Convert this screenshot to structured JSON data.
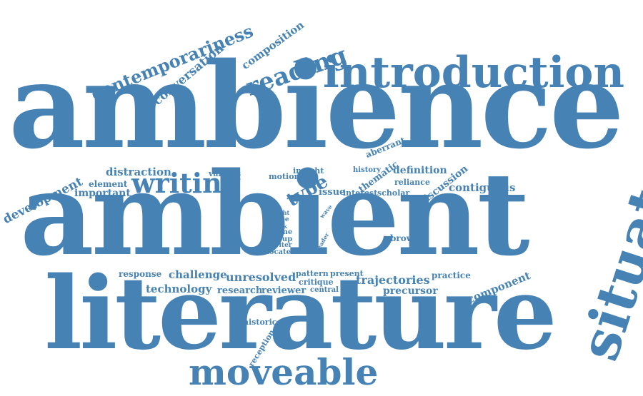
{
  "color": "#4682b4",
  "words": [
    {
      "id": "ambience",
      "text": "ambience"
    },
    {
      "id": "ambient",
      "text": "ambient"
    },
    {
      "id": "literature",
      "text": "literature"
    },
    {
      "id": "introduction",
      "text": "introduction"
    },
    {
      "id": "situated",
      "text": "situated"
    },
    {
      "id": "moveable",
      "text": "moveable"
    },
    {
      "id": "writing",
      "text": "writing"
    },
    {
      "id": "reading",
      "text": "reading"
    },
    {
      "id": "contemporariness",
      "text": "contemporariness"
    },
    {
      "id": "conversation",
      "text": "conversation"
    },
    {
      "id": "composition",
      "text": "composition"
    },
    {
      "id": "development",
      "text": "development"
    },
    {
      "id": "distraction",
      "text": "distraction"
    },
    {
      "id": "various",
      "text": "various"
    },
    {
      "id": "element",
      "text": "element"
    },
    {
      "id": "important",
      "text": "important"
    },
    {
      "id": "motion",
      "text": "motion"
    },
    {
      "id": "insight",
      "text": "insight"
    },
    {
      "id": "type",
      "text": "type"
    },
    {
      "id": "issue",
      "text": "issue"
    },
    {
      "id": "history",
      "text": "history"
    },
    {
      "id": "thematic",
      "text": "thematic"
    },
    {
      "id": "interest",
      "text": "interest"
    },
    {
      "id": "scholar",
      "text": "scholar"
    },
    {
      "id": "definition",
      "text": "definition"
    },
    {
      "id": "reliance",
      "text": "reliance"
    },
    {
      "id": "discussion",
      "text": "discussion"
    },
    {
      "id": "contiguous",
      "text": "contiguous"
    },
    {
      "id": "aberrant",
      "text": "aberrant"
    },
    {
      "id": "light",
      "text": "light"
    },
    {
      "id": "hope",
      "text": "hope"
    },
    {
      "id": "book",
      "text": "book"
    },
    {
      "id": "theme",
      "text": "theme"
    },
    {
      "id": "group",
      "text": "group"
    },
    {
      "id": "writer",
      "text": "writer"
    },
    {
      "id": "locate",
      "text": "locate"
    },
    {
      "id": "app",
      "text": "app"
    },
    {
      "id": "wave",
      "text": "wave"
    },
    {
      "id": "reader",
      "text": "reader"
    },
    {
      "id": "browser",
      "text": "browser"
    },
    {
      "id": "response",
      "text": "response"
    },
    {
      "id": "challenge",
      "text": "challenge"
    },
    {
      "id": "unresolved",
      "text": "unresolved"
    },
    {
      "id": "pattern",
      "text": "pattern"
    },
    {
      "id": "present",
      "text": "present"
    },
    {
      "id": "critique",
      "text": "critique"
    },
    {
      "id": "central",
      "text": "central"
    },
    {
      "id": "trajectories",
      "text": "trajectories"
    },
    {
      "id": "practice",
      "text": "practice"
    },
    {
      "id": "precursor",
      "text": "precursor"
    },
    {
      "id": "component",
      "text": "component"
    },
    {
      "id": "technology",
      "text": "technology"
    },
    {
      "id": "research",
      "text": "research"
    },
    {
      "id": "reviewer",
      "text": "reviewer"
    },
    {
      "id": "historic",
      "text": "historic"
    },
    {
      "id": "reception",
      "text": "reception"
    }
  ]
}
